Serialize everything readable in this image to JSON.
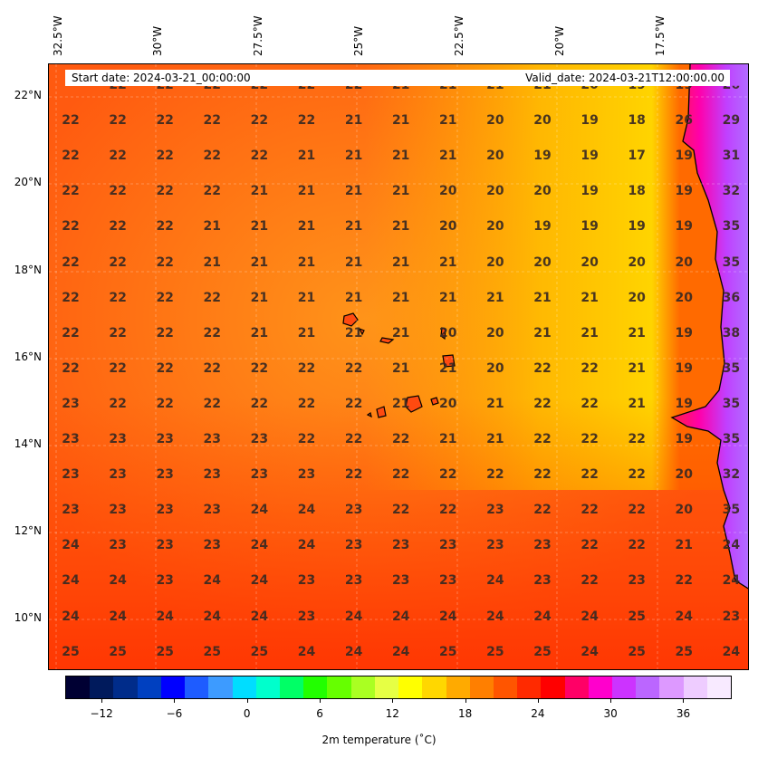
{
  "map": {
    "start_date": "Start date: 2024-03-21_00:00:00",
    "valid_date": "Valid_date: 2024-03-21T12:00:00.00",
    "lon_labels": [
      "32.5°W",
      "30°W",
      "27.5°W",
      "25°W",
      "22.5°W",
      "20°W",
      "17.5°W"
    ],
    "lat_labels": [
      "22°N",
      "20°N",
      "18°N",
      "16°N",
      "14°N",
      "12°N",
      "10°N"
    ],
    "temperature_rows": [
      [
        "22",
        "22",
        "22",
        "22",
        "22",
        "22",
        "21",
        "21",
        "21",
        "21",
        "20",
        "19",
        "19",
        "26"
      ],
      [
        "22",
        "22",
        "22",
        "22",
        "22",
        "22",
        "21",
        "21",
        "21",
        "20",
        "20",
        "19",
        "18",
        "26",
        "29"
      ],
      [
        "22",
        "22",
        "22",
        "22",
        "22",
        "21",
        "21",
        "21",
        "21",
        "20",
        "19",
        "19",
        "17",
        "19",
        "31"
      ],
      [
        "22",
        "22",
        "22",
        "22",
        "21",
        "21",
        "21",
        "21",
        "20",
        "20",
        "20",
        "19",
        "18",
        "19",
        "32"
      ],
      [
        "22",
        "22",
        "22",
        "21",
        "21",
        "21",
        "21",
        "21",
        "20",
        "20",
        "19",
        "19",
        "19",
        "19",
        "35"
      ],
      [
        "22",
        "22",
        "22",
        "21",
        "21",
        "21",
        "21",
        "21",
        "21",
        "20",
        "20",
        "20",
        "20",
        "20",
        "35"
      ],
      [
        "22",
        "22",
        "22",
        "22",
        "21",
        "21",
        "21",
        "21",
        "21",
        "21",
        "21",
        "21",
        "20",
        "20",
        "36"
      ],
      [
        "22",
        "22",
        "22",
        "22",
        "21",
        "21",
        "21",
        "21",
        "20",
        "20",
        "21",
        "21",
        "21",
        "19",
        "38"
      ],
      [
        "22",
        "22",
        "22",
        "22",
        "22",
        "22",
        "22",
        "21",
        "21",
        "20",
        "22",
        "22",
        "21",
        "19",
        "35"
      ],
      [
        "23",
        "22",
        "22",
        "22",
        "22",
        "22",
        "22",
        "21",
        "20",
        "21",
        "22",
        "22",
        "21",
        "19",
        "35"
      ],
      [
        "23",
        "23",
        "23",
        "23",
        "23",
        "22",
        "22",
        "22",
        "21",
        "21",
        "22",
        "22",
        "22",
        "19",
        "35"
      ],
      [
        "23",
        "23",
        "23",
        "23",
        "23",
        "23",
        "22",
        "22",
        "22",
        "22",
        "22",
        "22",
        "22",
        "20",
        "32"
      ],
      [
        "23",
        "23",
        "23",
        "23",
        "24",
        "24",
        "23",
        "22",
        "22",
        "23",
        "22",
        "22",
        "22",
        "20",
        "35"
      ],
      [
        "24",
        "23",
        "23",
        "23",
        "24",
        "24",
        "23",
        "23",
        "23",
        "23",
        "23",
        "22",
        "22",
        "21",
        "24"
      ],
      [
        "24",
        "24",
        "23",
        "24",
        "24",
        "23",
        "23",
        "23",
        "23",
        "24",
        "23",
        "22",
        "23",
        "22",
        "24"
      ],
      [
        "24",
        "24",
        "24",
        "24",
        "24",
        "23",
        "24",
        "24",
        "24",
        "24",
        "24",
        "24",
        "25",
        "24",
        "23"
      ],
      [
        "25",
        "25",
        "25",
        "25",
        "25",
        "24",
        "24",
        "24",
        "25",
        "25",
        "25",
        "24",
        "25",
        "25",
        "24"
      ]
    ],
    "colors": {
      "ocean_base": "#ff5a10",
      "warm_core": "#ff9a1a",
      "yellow_coast": "#ffce00",
      "hot_land": "#cc44ff",
      "land_edge": "#ff2a55"
    }
  },
  "colorbar": {
    "title": "2m temperature ($^\\circ$C)",
    "title_display": "2m temperature (˚C)",
    "tick_labels": [
      "−12",
      "−6",
      "0",
      "6",
      "12",
      "18",
      "24",
      "30",
      "36"
    ],
    "tick_values": [
      -12,
      -6,
      0,
      6,
      12,
      18,
      24,
      30,
      36
    ],
    "range": [
      -15,
      40
    ],
    "colors": [
      "#000033",
      "#001a5c",
      "#002c8a",
      "#0040c0",
      "#0000ff",
      "#1e5cff",
      "#3d9bff",
      "#00ddff",
      "#00ffcc",
      "#00ff66",
      "#22ff00",
      "#66ff00",
      "#aaff22",
      "#e6ff44",
      "#ffff00",
      "#ffd700",
      "#ffaa00",
      "#ff7f00",
      "#ff5500",
      "#ff2a00",
      "#ff0000",
      "#ff0066",
      "#ff00cc",
      "#cc33ff",
      "#bb66ff",
      "#dd99ff",
      "#eeccff",
      "#f8eaff"
    ]
  }
}
